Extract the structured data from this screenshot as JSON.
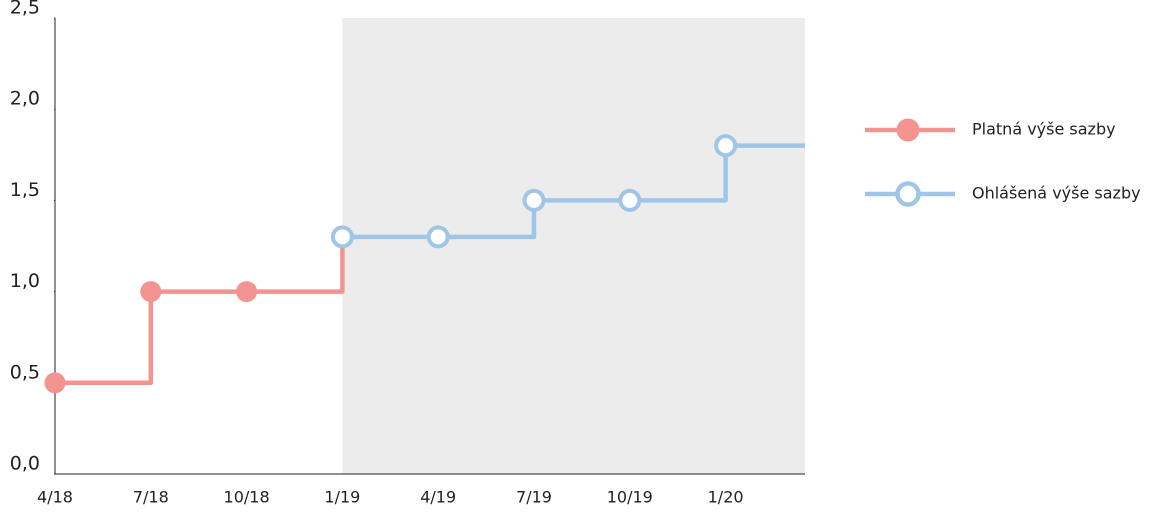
{
  "chart_data": {
    "type": "step-line",
    "categories": [
      "4/18",
      "7/18",
      "10/18",
      "1/19",
      "4/19",
      "7/19",
      "10/19",
      "1/20"
    ],
    "series": [
      {
        "name": "Platná výše sazby",
        "color": "#f39490",
        "marker": "filled",
        "values": [
          0.5,
          1.0,
          1.0,
          1.3,
          null,
          null,
          null,
          null
        ]
      },
      {
        "name": "Ohlášená výše sazby",
        "color": "#9fc5e8",
        "marker": "hollow",
        "values": [
          null,
          null,
          null,
          1.3,
          1.3,
          1.5,
          1.5,
          1.8
        ]
      }
    ],
    "ylim": [
      0,
      2.5
    ],
    "yticks": [
      {
        "value": 0,
        "label": "0,0"
      },
      {
        "value": 0.5,
        "label": "0,5"
      },
      {
        "value": 1.0,
        "label": "1,0"
      },
      {
        "value": 1.5,
        "label": "1,5"
      },
      {
        "value": 2.0,
        "label": "2,0"
      },
      {
        "value": 2.5,
        "label": "2,5"
      }
    ],
    "legend": "right"
  }
}
